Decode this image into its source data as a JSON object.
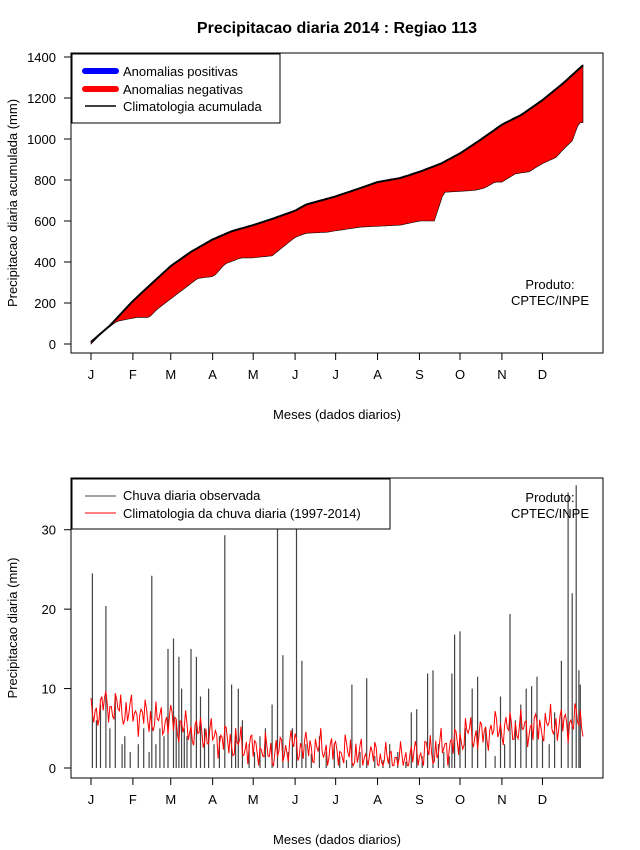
{
  "title": "Precipitacao diaria 2014 : Regiao 113",
  "produto": [
    "Produto:",
    "CPTEC/INPE"
  ],
  "colors": {
    "positive": "#0000ff",
    "negative": "#ff0000",
    "clim": "#000000",
    "obs": "#444444",
    "clim_daily": "#ff0000"
  },
  "chart_data": [
    {
      "type": "area",
      "title": "Precipitacao diaria 2014 : Regiao 113",
      "xlabel": "Meses (dados diarios)",
      "ylabel": "Precipitacao diaria acumulada (mm)",
      "month_ticks": [
        "J",
        "F",
        "M",
        "A",
        "M",
        "J",
        "J",
        "A",
        "S",
        "O",
        "N",
        "D"
      ],
      "month_days": [
        1,
        32,
        60,
        91,
        121,
        152,
        182,
        213,
        244,
        274,
        305,
        335
      ],
      "xlim": [
        1,
        365
      ],
      "ylim": [
        0,
        1400
      ],
      "yticks": [
        0,
        200,
        400,
        600,
        800,
        1000,
        1200,
        1400
      ],
      "legend": [
        "Anomalias positivas",
        "Anomalias negativas",
        "Climatologia acumulada"
      ],
      "legend_position": "top-left",
      "climatology_cumulative": {
        "day": [
          1,
          15,
          32,
          45,
          60,
          75,
          91,
          105,
          121,
          135,
          152,
          160,
          182,
          200,
          213,
          230,
          244,
          260,
          274,
          290,
          305,
          320,
          335,
          350,
          365
        ],
        "value": [
          10,
          90,
          210,
          290,
          380,
          450,
          510,
          550,
          580,
          610,
          650,
          680,
          720,
          760,
          790,
          810,
          840,
          880,
          930,
          1000,
          1070,
          1120,
          1190,
          1270,
          1360
        ]
      },
      "observed_cumulative": {
        "day": [
          1,
          10,
          20,
          35,
          44,
          50,
          60,
          70,
          80,
          92,
          100,
          112,
          120,
          135,
          152,
          160,
          175,
          200,
          230,
          244,
          255,
          262,
          275,
          285,
          292,
          300,
          305,
          315,
          325,
          335,
          345,
          352,
          357,
          362,
          365
        ],
        "value": [
          0,
          60,
          110,
          130,
          130,
          170,
          220,
          270,
          320,
          330,
          390,
          420,
          420,
          430,
          520,
          540,
          545,
          570,
          580,
          600,
          600,
          740,
          745,
          750,
          760,
          790,
          790,
          830,
          840,
          880,
          910,
          960,
          990,
          1080,
          1080
        ]
      }
    },
    {
      "type": "line",
      "xlabel": "Meses (dados diarios)",
      "ylabel": "Precipitacao diaria (mm)",
      "month_ticks": [
        "J",
        "F",
        "M",
        "A",
        "M",
        "J",
        "J",
        "A",
        "S",
        "O",
        "N",
        "D"
      ],
      "month_days": [
        1,
        32,
        60,
        91,
        121,
        152,
        182,
        213,
        244,
        274,
        305,
        335
      ],
      "xlim": [
        1,
        365
      ],
      "ylim": [
        0,
        35
      ],
      "yticks": [
        0,
        10,
        20,
        30
      ],
      "legend": [
        "Chuva diaria observada",
        "Climatologia da chuva diaria (1997-2014)"
      ],
      "legend_position": "top-left",
      "observed_daily_peaks": {
        "day": [
          2,
          5,
          8,
          12,
          15,
          19,
          24,
          26,
          30,
          36,
          40,
          44,
          46,
          49,
          52,
          55,
          58,
          62,
          64,
          66,
          68,
          70,
          72,
          75,
          79,
          82,
          85,
          88,
          92,
          96,
          100,
          105,
          108,
          110,
          113,
          118,
          122,
          126,
          130,
          135,
          139,
          143,
          147,
          150,
          153,
          157,
          160,
          164,
          170,
          175,
          181,
          185,
          190,
          194,
          200,
          205,
          211,
          217,
          222,
          228,
          234,
          238,
          242,
          246,
          250,
          254,
          258,
          262,
          266,
          268,
          270,
          274,
          278,
          283,
          287,
          293,
          300,
          304,
          307,
          311,
          315,
          319,
          323,
          327,
          331,
          335,
          340,
          344,
          349,
          354,
          357,
          360,
          362,
          363
        ],
        "value": [
          24.5,
          6,
          8,
          20.4,
          5,
          9,
          3,
          4,
          2,
          3,
          5,
          2,
          24.2,
          3,
          5,
          4,
          15,
          16.3,
          6,
          14,
          10,
          5,
          4,
          15,
          14,
          9,
          5,
          10,
          3,
          4,
          29.3,
          10.5,
          5,
          10,
          6,
          3,
          2,
          4,
          5,
          8,
          30.8,
          14.2,
          2,
          5,
          30.8,
          13.5,
          3,
          1.8,
          4,
          2,
          3,
          1.5,
          1,
          10.5,
          2,
          11.3,
          1.5,
          1,
          3,
          2,
          0.8,
          7,
          7.4,
          1.5,
          11.9,
          12.3,
          3,
          2,
          1.5,
          11.9,
          16.8,
          17.2,
          5,
          10,
          11.5,
          5,
          1.5,
          9,
          3,
          19.4,
          6,
          8,
          10,
          10.3,
          11.5,
          4,
          3,
          7,
          13.5,
          34.7,
          22,
          35.6,
          12.3,
          10.5
        ]
      },
      "climatology_daily": {
        "day": [
          1,
          10,
          20,
          30,
          40,
          50,
          60,
          70,
          80,
          90,
          100,
          110,
          120,
          130,
          140,
          150,
          160,
          170,
          180,
          190,
          200,
          210,
          220,
          230,
          240,
          250,
          260,
          270,
          280,
          290,
          300,
          310,
          320,
          330,
          340,
          350,
          360,
          365
        ],
        "value": [
          6.5,
          8,
          7.5,
          7,
          6.5,
          6,
          6,
          5,
          4.5,
          4,
          3.5,
          3,
          2.5,
          2,
          2,
          3,
          2.5,
          2.5,
          2,
          2,
          1.5,
          1.5,
          1,
          1,
          1.5,
          2,
          2.5,
          3,
          4.5,
          4,
          5,
          5,
          5,
          5,
          5.5,
          5.5,
          6,
          6
        ]
      }
    }
  ]
}
